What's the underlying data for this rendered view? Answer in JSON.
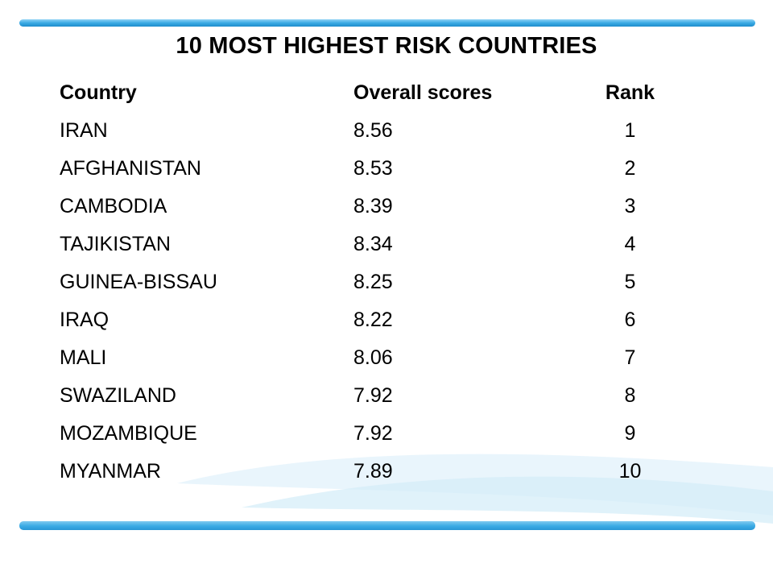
{
  "title": "10 MOST HIGHEST RISK COUNTRIES",
  "table": {
    "headers": [
      "Country",
      "Overall scores",
      "Rank"
    ],
    "rows": [
      [
        "IRAN",
        "8.56",
        "1"
      ],
      [
        "AFGHANISTAN",
        "8.53",
        "2"
      ],
      [
        "CAMBODIA",
        "8.39",
        "3"
      ],
      [
        "TAJIKISTAN",
        "8.34",
        "4"
      ],
      [
        "GUINEA-BISSAU",
        "8.25",
        "5"
      ],
      [
        "IRAQ",
        "8.22",
        "6"
      ],
      [
        "MALI",
        "8.06",
        "7"
      ],
      [
        "SWAZILAND",
        "7.92",
        "8"
      ],
      [
        "MOZAMBIQUE",
        "7.92",
        "9"
      ],
      [
        "MYANMAR",
        "7.89",
        "10"
      ]
    ]
  },
  "colors": {
    "accent_blue": "#3aaae4",
    "text": "#000000",
    "background": "#ffffff"
  }
}
